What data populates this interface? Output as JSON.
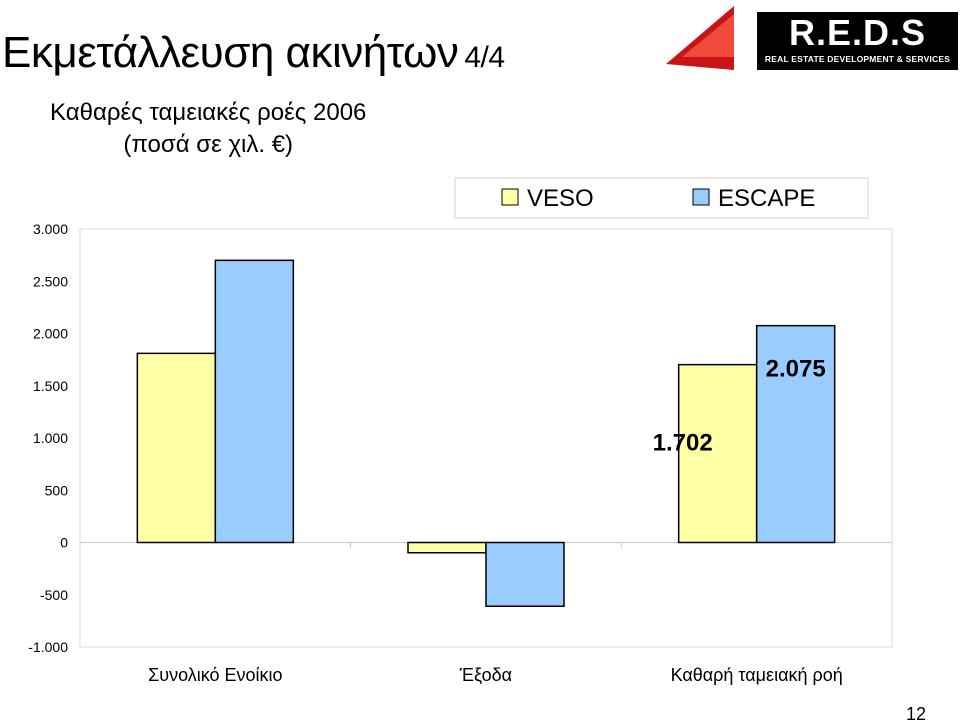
{
  "slide": {
    "title": "Εκμετάλλευση ακινήτων",
    "title_page": "4/4",
    "subtitle_line1": "Καθαρές ταμειακές ροές 2006",
    "subtitle_line2": "(ποσά σε χιλ. €)",
    "page_number": "12"
  },
  "logo": {
    "name": "R.E.D.S",
    "tagline": "REAL ESTATE DEVELOPMENT & SERVICES",
    "accent_color": "#e02020"
  },
  "chart_data": {
    "type": "bar",
    "categories": [
      "Συνολικό Ενοίκιο",
      "Έξοδα",
      "Καθαρή ταμειακή ροή"
    ],
    "series": [
      {
        "name": "VESO",
        "color": "#ffffa6",
        "values": [
          1810,
          -98,
          1702
        ]
      },
      {
        "name": "ESCAPE",
        "color": "#99ccff",
        "values": [
          2700,
          -610,
          2075
        ]
      }
    ],
    "ylim": [
      -1000,
      3000
    ],
    "yticks": [
      -1000,
      -500,
      0,
      500,
      1000,
      1500,
      2000,
      2500,
      3000
    ],
    "ytick_labels": [
      "-1.000",
      "-500",
      "0",
      "500",
      "1.000",
      "1.500",
      "2.000",
      "2.500",
      "3.000"
    ],
    "data_labels": [
      {
        "series": "VESO",
        "category": "Καθαρή ταμειακή ροή",
        "text": "1.702"
      },
      {
        "series": "ESCAPE",
        "category": "Καθαρή ταμειακή ροή",
        "text": "2.075"
      }
    ],
    "legend": {
      "placement": "top-right",
      "entries": [
        "VESO",
        "ESCAPE"
      ]
    },
    "grid": false
  }
}
